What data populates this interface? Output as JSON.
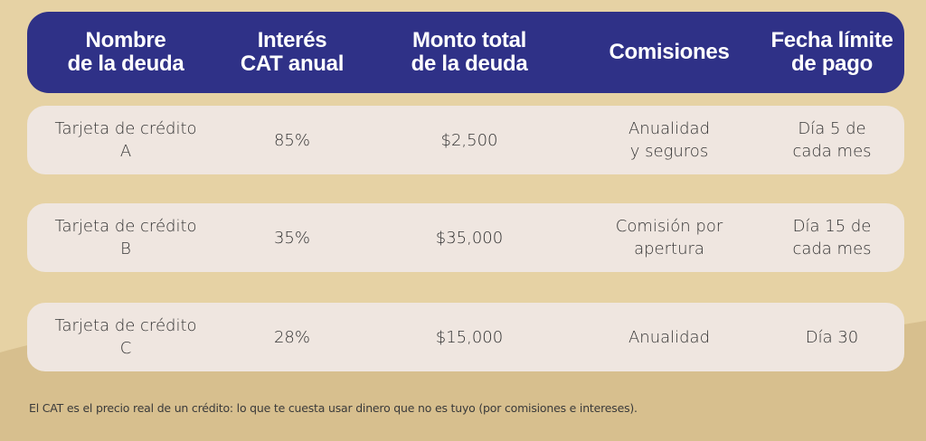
{
  "colors": {
    "background": "#e6d2a4",
    "wave": "#d7bf8e",
    "header_bg": "#2f3187",
    "row_bg": "#efe6e0",
    "header_text": "#ffffff",
    "body_text": "#333333"
  },
  "table": {
    "headers": [
      "Nombre\nde la deuda",
      "Interés\nCAT anual",
      "Monto total\nde la deuda",
      "Comisiones",
      "Fecha límite\nde pago"
    ],
    "rows": [
      [
        "Tarjeta de crédito\nA",
        "85%",
        "$2,500",
        "Anualidad\ny seguros",
        "Día 5 de\ncada mes"
      ],
      [
        "Tarjeta de crédito\nB",
        "35%",
        "$35,000",
        "Comisión por\napertura",
        "Día 15 de\ncada mes"
      ],
      [
        "Tarjeta de crédito\nC",
        "28%",
        "$15,000",
        "Anualidad",
        "Día 30"
      ]
    ]
  },
  "footnote": "El CAT es el precio real de un crédito: lo que te cuesta usar dinero que no es tuyo (por comisiones e intereses)."
}
